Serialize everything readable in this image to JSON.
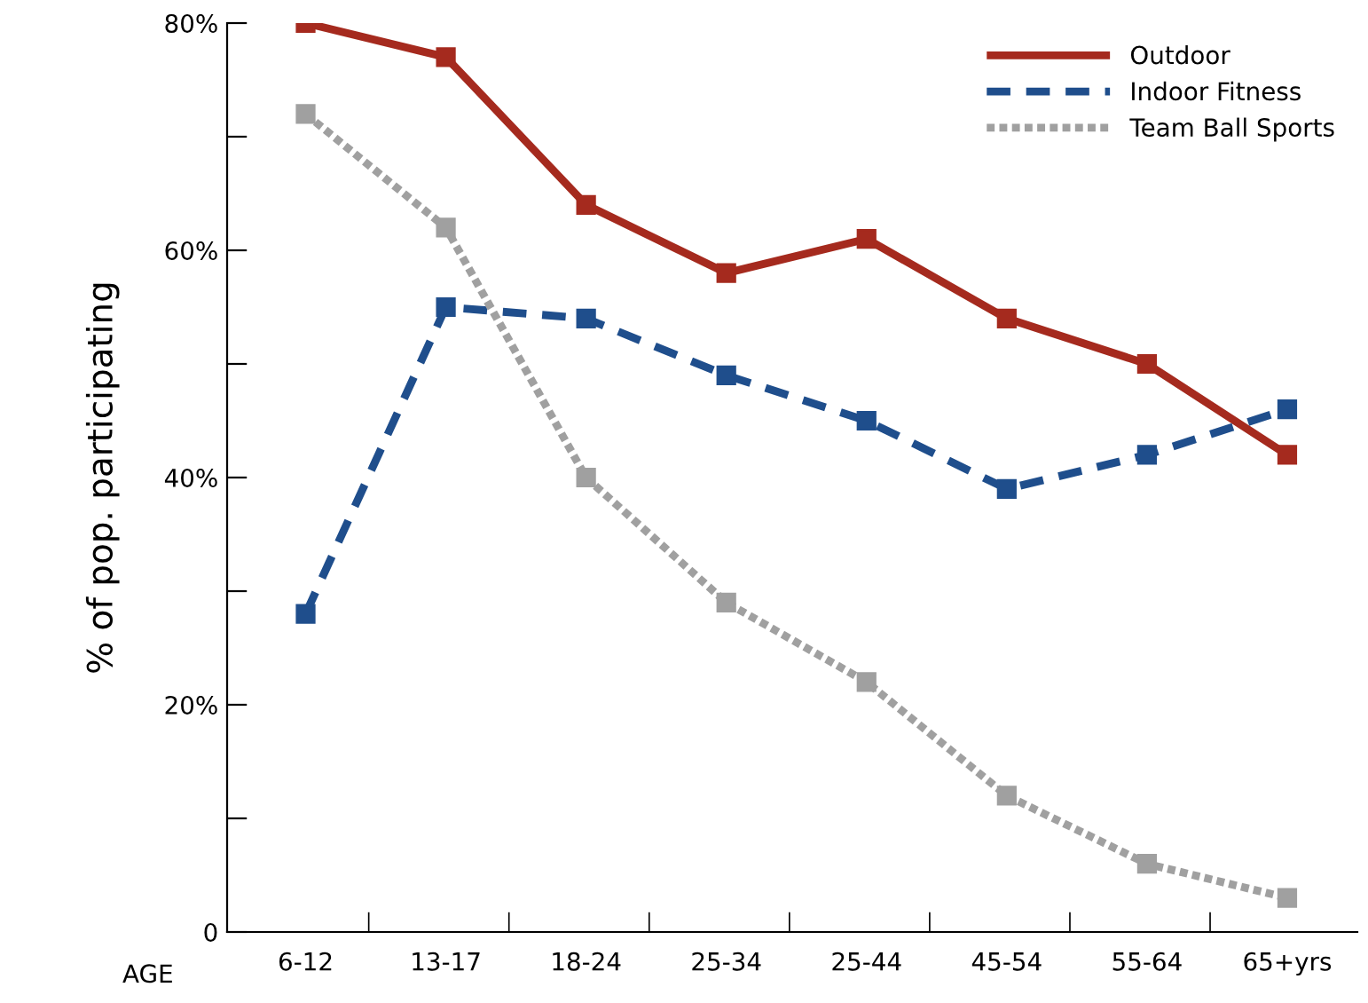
{
  "chart_data": {
    "type": "line",
    "xlabel": "AGE",
    "ylabel": "% of pop. participating",
    "categories": [
      "6-12",
      "13-17",
      "18-24",
      "25-34",
      "25-44",
      "45-54",
      "55-64",
      "65+yrs"
    ],
    "series": [
      {
        "name": "Outdoor",
        "color": "#a52a1e",
        "line_style": "solid",
        "values": [
          80,
          77,
          64,
          58,
          61,
          54,
          50,
          42
        ]
      },
      {
        "name": "Indoor Fitness",
        "color": "#1f4e8c",
        "line_style": "dashed",
        "values": [
          28,
          55,
          54,
          49,
          45,
          39,
          42,
          46
        ]
      },
      {
        "name": "Team Ball Sports",
        "color": "#a0a0a0",
        "line_style": "dotted",
        "values": [
          72,
          62,
          40,
          29,
          22,
          12,
          6,
          3
        ]
      }
    ],
    "ylim": [
      0,
      80
    ],
    "yticks": [
      0,
      {
        "value": 10,
        "label": null
      },
      {
        "value": 20,
        "label": "20%"
      },
      {
        "value": 30,
        "label": null
      },
      {
        "value": 40,
        "label": "40%"
      },
      {
        "value": 50,
        "label": null
      },
      {
        "value": 60,
        "label": "60%"
      },
      {
        "value": 70,
        "label": null
      },
      {
        "value": 80,
        "label": "80%"
      }
    ],
    "marker": "square",
    "grid": false,
    "legend": "top right"
  }
}
